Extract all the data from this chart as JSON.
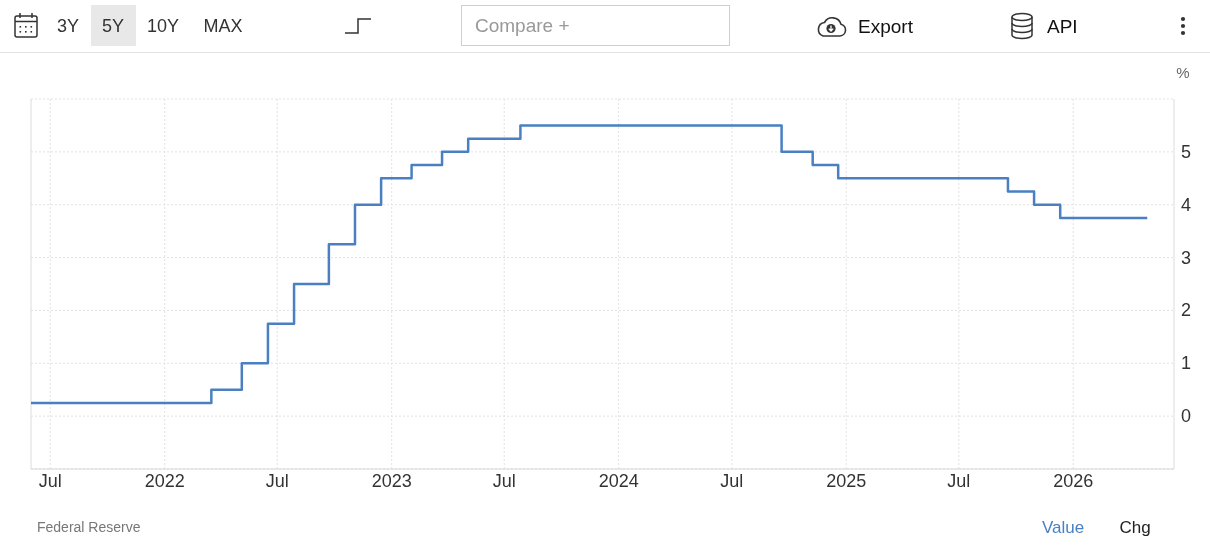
{
  "chart_data": {
    "type": "step",
    "ylabel": "%",
    "series": [
      {
        "color": "#4a80c2",
        "x": [
          "2021-05-31",
          "2022-03-17",
          "2022-05-05",
          "2022-06-16",
          "2022-07-28",
          "2022-09-22",
          "2022-11-03",
          "2022-12-15",
          "2023-02-02",
          "2023-03-23",
          "2023-05-04",
          "2023-07-27",
          "2024-09-19",
          "2024-11-08",
          "2024-12-19",
          "2025-09-18",
          "2025-10-30",
          "2025-12-11",
          "2026-04-30"
        ],
        "values": [
          0.25,
          0.5,
          1,
          1.75,
          2.5,
          3.25,
          4,
          4.5,
          4.75,
          5,
          5.25,
          5.5,
          5,
          4.75,
          4.5,
          4.25,
          4,
          3.75,
          3.75
        ]
      }
    ],
    "xlim": [
      "2021-05-31",
      "2026-06-12"
    ],
    "xticks": [
      {
        "value": "2021-07-01",
        "label": "Jul"
      },
      {
        "value": "2022-01-01",
        "label": "2022"
      },
      {
        "value": "2022-07-01",
        "label": "Jul"
      },
      {
        "value": "2023-01-01",
        "label": "2023"
      },
      {
        "value": "2023-07-01",
        "label": "Jul"
      },
      {
        "value": "2024-01-01",
        "label": "2024"
      },
      {
        "value": "2024-07-01",
        "label": "Jul"
      },
      {
        "value": "2025-01-01",
        "label": "2025"
      },
      {
        "value": "2025-07-01",
        "label": "Jul"
      },
      {
        "value": "2026-01-01",
        "label": "2026"
      }
    ],
    "ylim": [
      -1,
      6
    ],
    "yticks": [
      {
        "value": -1,
        "label": null
      },
      0,
      1,
      2,
      3,
      4,
      5,
      {
        "value": 6,
        "label": null
      }
    ],
    "grid": true,
    "line_style": "solid",
    "annotations": [
      "3Y",
      "5Y",
      "10Y",
      "MAX",
      "Compare +",
      "Export",
      "API",
      "Federal Reserve",
      "Value",
      "Chg"
    ]
  }
}
